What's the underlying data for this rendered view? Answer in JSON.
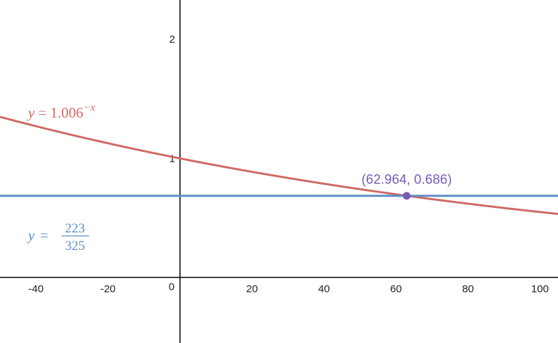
{
  "chart_data": {
    "type": "line",
    "xlim": [
      -50,
      105
    ],
    "ylim": [
      -0.55,
      2.33
    ],
    "grid": false,
    "x_ticks": [
      -40,
      -20,
      0,
      20,
      40,
      60,
      80,
      100
    ],
    "x_tick_labels": [
      "-40",
      "-20",
      "0",
      "20",
      "40",
      "60",
      "80",
      "100"
    ],
    "y_ticks": [
      1,
      2
    ],
    "y_tick_labels": [
      "1",
      "2"
    ],
    "series": [
      {
        "kind": "function",
        "base": 1.006,
        "color": "#cf6a66",
        "label_parts": {
          "y": "y",
          "eq": " = ",
          "base": "1.006",
          "exp": "−x"
        }
      },
      {
        "kind": "constant",
        "value": 0.686,
        "numerator": "223",
        "denominator": "325",
        "color": "#5b8fc7",
        "label_parts": {
          "y": "y",
          "eq": " = ",
          "num": "223",
          "den": "325"
        }
      }
    ],
    "intersection": {
      "x": 62.964,
      "y": 0.686,
      "label": "(62.964, 0.686)",
      "color": "#7b5bb5"
    }
  }
}
